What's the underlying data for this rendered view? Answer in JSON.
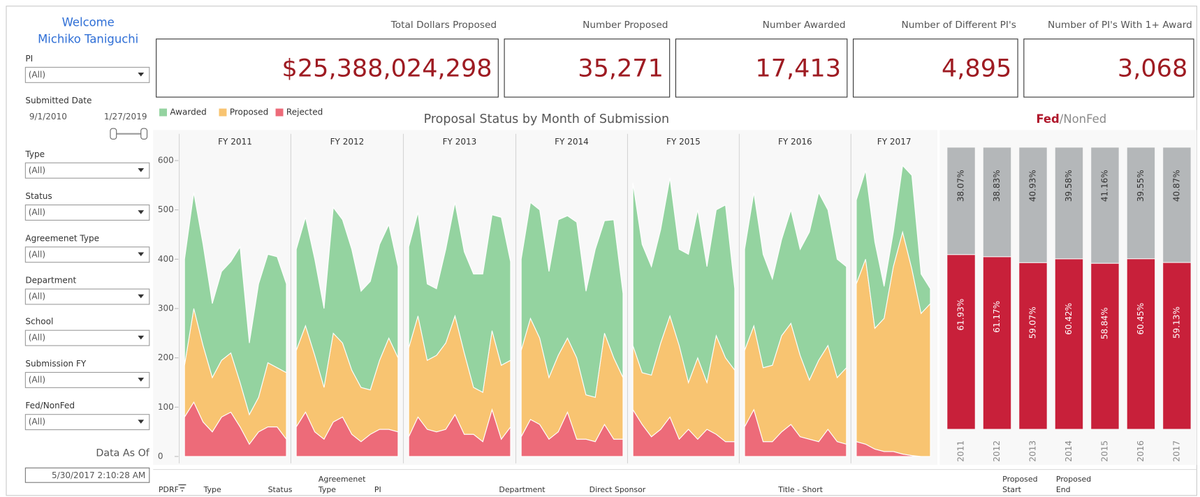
{
  "sidebar": {
    "welcome": "Welcome",
    "user": "Michiko Taniguchi",
    "filters": [
      {
        "label": "PI",
        "value": "(All)"
      },
      {
        "label": "Submitted Date",
        "from": "9/1/2010",
        "to": "1/27/2019"
      },
      {
        "label": "Type",
        "value": "(All)"
      },
      {
        "label": "Status",
        "value": "(All)"
      },
      {
        "label": "Agreemenet Type",
        "value": "(All)"
      },
      {
        "label": "Department",
        "value": "(All)"
      },
      {
        "label": "School",
        "value": "(All)"
      },
      {
        "label": "Submission FY",
        "value": "(All)"
      },
      {
        "label": "Fed/NonFed",
        "value": "(All)"
      }
    ],
    "data_as_of_label": "Data As Of",
    "data_as_of": "5/30/2017 2:10:28 AM"
  },
  "kpis": [
    {
      "title": "Total Dollars Proposed",
      "value": "$25,388,024,298"
    },
    {
      "title": "Number Proposed",
      "value": "35,271"
    },
    {
      "title": "Number Awarded",
      "value": "17,413"
    },
    {
      "title": "Number of Different PI's",
      "value": "4,895"
    },
    {
      "title": "Number of PI's With 1+ Award",
      "value": "3,068"
    }
  ],
  "chart_data": [
    {
      "type": "area",
      "title": "Proposal Status by Month of Submission",
      "series": [
        {
          "name": "Awarded",
          "color": "#94d3a0"
        },
        {
          "name": "Proposed",
          "color": "#f8c471"
        },
        {
          "name": "Rejected",
          "color": "#ed6b79"
        }
      ],
      "panels": [
        {
          "label": "FY 2011",
          "series": [
            {
              "values": [
                215,
                235,
                205,
                150,
                180,
                185,
                275,
                145,
                230,
                220,
                225,
                180
              ]
            },
            {
              "values": [
                105,
                190,
                155,
                110,
                115,
                120,
                90,
                60,
                70,
                130,
                120,
                135
              ]
            },
            {
              "values": [
                80,
                110,
                70,
                50,
                80,
                90,
                60,
                25,
                50,
                60,
                60,
                35
              ]
            }
          ]
        },
        {
          "label": "FY 2012",
          "series": [
            {
              "values": [
                205,
                220,
                195,
                160,
                255,
                250,
                245,
                195,
                220,
                235,
                230,
                185
              ]
            },
            {
              "values": [
                155,
                175,
                155,
                105,
                180,
                150,
                130,
                110,
                90,
                140,
                185,
                150
              ]
            },
            {
              "values": [
                60,
                90,
                50,
                35,
                70,
                80,
                45,
                30,
                45,
                55,
                55,
                50
              ]
            }
          ]
        },
        {
          "label": "FY 2013",
          "series": [
            {
              "values": [
                205,
                210,
                155,
                135,
                190,
                230,
                205,
                230,
                240,
                235,
                300,
                200
              ]
            },
            {
              "values": [
                180,
                205,
                140,
                155,
                175,
                200,
                165,
                95,
                100,
                160,
                150,
                135
              ]
            },
            {
              "values": [
                40,
                80,
                55,
                50,
                55,
                85,
                45,
                45,
                30,
                95,
                35,
                60
              ]
            }
          ]
        },
        {
          "label": "FY 2014",
          "series": [
            {
              "values": [
                185,
                235,
                260,
                215,
                275,
                248,
                275,
                210,
                300,
                228,
                280,
                170
              ]
            },
            {
              "values": [
                175,
                205,
                175,
                125,
                155,
                150,
                165,
                90,
                90,
                185,
                165,
                125
              ]
            },
            {
              "values": [
                40,
                75,
                65,
                35,
                50,
                90,
                35,
                35,
                30,
                65,
                35,
                35
              ]
            }
          ]
        },
        {
          "label": "FY 2015",
          "series": [
            {
              "values": [
                330,
                260,
                220,
                230,
                280,
                195,
                260,
                300,
                235,
                255,
                310,
                165
              ]
            },
            {
              "values": [
                130,
                105,
                125,
                175,
                205,
                190,
                95,
                165,
                95,
                200,
                170,
                145
              ]
            },
            {
              "values": [
                95,
                65,
                40,
                55,
                80,
                35,
                55,
                35,
                55,
                45,
                30,
                30
              ]
            }
          ]
        },
        {
          "label": "FY 2016",
          "series": [
            {
              "values": [
                205,
                270,
                230,
                175,
                195,
                230,
                215,
                300,
                340,
                275,
                240,
                205
              ]
            },
            {
              "values": [
                155,
                170,
                150,
                155,
                195,
                205,
                165,
                120,
                165,
                170,
                130,
                155
              ]
            },
            {
              "values": [
                60,
                95,
                30,
                30,
                50,
                65,
                40,
                35,
                30,
                55,
                30,
                25
              ]
            }
          ]
        },
        {
          "label": "FY 2017",
          "series": [
            {
              "values": [
                170,
                180,
                175,
                65,
                70,
                135,
                190,
                80,
                30
              ]
            },
            {
              "values": [
                320,
                375,
                245,
                270,
                375,
                450,
                378,
                290,
                310
              ]
            },
            {
              "values": [
                30,
                25,
                15,
                10,
                10,
                5,
                2,
                0,
                0
              ]
            }
          ]
        }
      ],
      "ylim": [
        0,
        600
      ],
      "yticks": [
        0,
        100,
        200,
        300,
        400,
        500,
        600
      ]
    },
    {
      "type": "bar",
      "stacked": true,
      "title_segments": [
        "Fed",
        "/NonFed"
      ],
      "categories": [
        "2011",
        "2012",
        "2013",
        "2014",
        "2015",
        "2016",
        "2017"
      ],
      "series": [
        {
          "name": "Fed",
          "color": "#c8203a",
          "values": [
            61.93,
            61.17,
            59.07,
            60.42,
            58.84,
            60.45,
            59.13
          ],
          "value_labels": [
            "61.93%",
            "61.17%",
            "59.07%",
            "60.42%",
            "58.84%",
            "60.45%",
            "59.13%"
          ]
        },
        {
          "name": "NonFed",
          "color": "#b4b7b9",
          "values": [
            38.07,
            38.83,
            40.93,
            39.58,
            41.16,
            39.55,
            40.87
          ],
          "value_labels": [
            "38.07%",
            "38.83%",
            "40.93%",
            "39.58%",
            "41.16%",
            "39.55%",
            "40.87%"
          ]
        }
      ]
    }
  ],
  "table_header": [
    [
      "PDRF"
    ],
    [
      "Type"
    ],
    [
      "Status"
    ],
    [
      "Agreemenet",
      "Type"
    ],
    [
      "PI"
    ],
    [
      "Department"
    ],
    [
      "Direct Sponsor"
    ],
    [
      "Title - Short"
    ],
    [
      "Proposed",
      "Start"
    ],
    [
      "Proposed",
      "End"
    ]
  ]
}
